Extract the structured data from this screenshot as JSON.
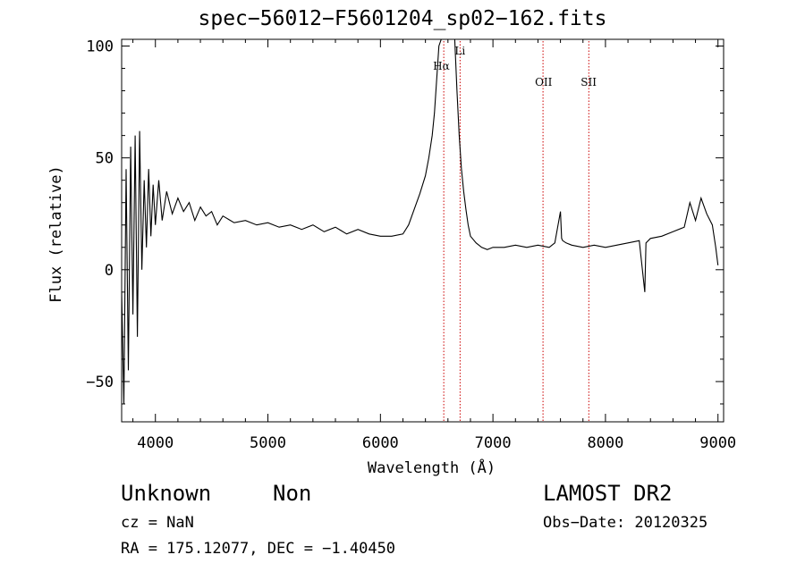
{
  "chart_data": {
    "type": "line",
    "title": "spec−56012−F5601204_sp02−162.fits",
    "xlabel": "Wavelength (Å)",
    "ylabel": "Flux (relative)",
    "xlim": [
      3700,
      9050
    ],
    "ylim": [
      -68,
      103
    ],
    "xticks": [
      4000,
      5000,
      6000,
      7000,
      8000,
      9000
    ],
    "xtick_labels": [
      "4000",
      "5000",
      "6000",
      "7000",
      "8000",
      "9000"
    ],
    "yticks": [
      100,
      50,
      0,
      -50
    ],
    "ytick_labels": [
      "100",
      "50",
      "0",
      "−50"
    ],
    "line_color": "#000000",
    "marker_color": "#cc0000",
    "line_markers": [
      {
        "label": "Hα",
        "x": 6563
      },
      {
        "label": "Li",
        "x": 6708
      },
      {
        "label": "OII",
        "x": 7445
      },
      {
        "label": "SII",
        "x": 7852
      }
    ],
    "series": [
      {
        "x": [
          3700,
          3720,
          3740,
          3760,
          3780,
          3800,
          3820,
          3840,
          3860,
          3880,
          3900,
          3920,
          3940,
          3960,
          3980,
          4000,
          4030,
          4060,
          4100,
          4150,
          4200,
          4250,
          4300,
          4350,
          4400,
          4450,
          4500,
          4550,
          4600,
          4700,
          4800,
          4900,
          5000,
          5100,
          5200,
          5300,
          5400,
          5500,
          5600,
          5700,
          5800,
          5900,
          6000,
          6100,
          6200,
          6250,
          6300,
          6350,
          6400,
          6430,
          6460,
          6480,
          6500,
          6520,
          6540,
          6560,
          6580,
          6600,
          6620,
          6640,
          6660,
          6680,
          6700,
          6720,
          6740,
          6760,
          6780,
          6800,
          6850,
          6900,
          6950,
          7000,
          7100,
          7200,
          7300,
          7400,
          7500,
          7550,
          7600,
          7610,
          7620,
          7650,
          7700,
          7800,
          7900,
          8000,
          8100,
          8200,
          8300,
          8350,
          8360,
          8400,
          8500,
          8600,
          8700,
          8750,
          8800,
          8850,
          8900,
          8950,
          8980,
          9000
        ],
        "y": [
          -10,
          -60,
          45,
          -45,
          55,
          -20,
          60,
          -30,
          62,
          0,
          40,
          10,
          45,
          15,
          38,
          20,
          40,
          22,
          35,
          25,
          32,
          26,
          30,
          22,
          28,
          24,
          26,
          20,
          24,
          21,
          22,
          20,
          21,
          19,
          20,
          18,
          20,
          17,
          19,
          16,
          18,
          16,
          15,
          15,
          16,
          20,
          27,
          34,
          42,
          50,
          60,
          70,
          85,
          100,
          103,
          103,
          103,
          103,
          103,
          103,
          103,
          80,
          60,
          45,
          35,
          27,
          20,
          15,
          12,
          10,
          9,
          10,
          10,
          11,
          10,
          11,
          10,
          12,
          26,
          14,
          13,
          12,
          11,
          10,
          11,
          10,
          11,
          12,
          13,
          -10,
          12,
          14,
          15,
          17,
          19,
          30,
          22,
          32,
          25,
          20,
          10,
          2
        ]
      }
    ]
  },
  "footer": {
    "object_class": "Unknown",
    "object_subclass": "Non",
    "survey": "LAMOST DR2",
    "redshift": "cz = NaN",
    "obs_date": "Obs−Date: 20120325",
    "coords": "RA = 175.12077, DEC =  −1.40450"
  }
}
